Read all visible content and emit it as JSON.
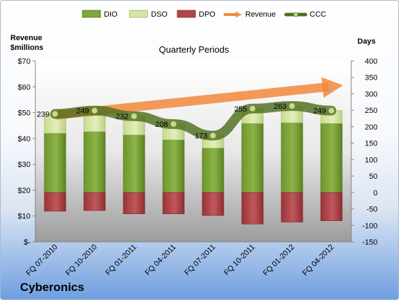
{
  "company": "Cyberonics",
  "left_axis_title_line1": "Revenue",
  "left_axis_title_line2": "$millions",
  "right_axis_title": "Days",
  "chart_title": "Quarterly Periods",
  "colors": {
    "dio": "#7fa83c",
    "dso": "#d7e6a7",
    "dpo": "#b0454a",
    "revenue": "#f08a3c",
    "ccc": "#4e6e1f"
  },
  "chart_data": {
    "type": "bar",
    "title": "Quarterly Periods",
    "categories": [
      "FQ 07-2010",
      "FQ 10-2010",
      "FQ 01-2011",
      "FQ 04-2011",
      "FQ 07-2011",
      "FQ 10-2011",
      "FQ 01-2012",
      "FQ 04-2012"
    ],
    "series": [
      {
        "name": "DIO",
        "values": [
          180,
          185,
          175,
          160,
          135,
          210,
          212,
          210
        ]
      },
      {
        "name": "DSO",
        "values": [
          58,
          63,
          57,
          48,
          38,
          45,
          50,
          39
        ]
      },
      {
        "name": "DPO",
        "values": [
          -57,
          -55,
          -65,
          -65,
          -70,
          -96,
          -90,
          -86
        ]
      },
      {
        "name": "Revenue",
        "values": [
          49,
          51,
          50,
          53,
          55,
          57,
          58,
          60
        ]
      },
      {
        "name": "CCC",
        "values": [
          239,
          249,
          232,
          208,
          173,
          255,
          263,
          249
        ]
      }
    ],
    "ccc_labels": [
      "239",
      "249",
      "232",
      "208",
      "173",
      "255",
      "263",
      "249"
    ],
    "left_axis": {
      "label": "Revenue $millions",
      "range": [
        0,
        70
      ],
      "ticks": [
        "$-",
        "$10",
        "$20",
        "$30",
        "$40",
        "$50",
        "$60",
        "$70"
      ]
    },
    "right_axis": {
      "label": "Days",
      "range": [
        -150,
        400
      ],
      "ticks": [
        "-150",
        "-100",
        "-50",
        "0",
        "50",
        "100",
        "150",
        "200",
        "250",
        "300",
        "350",
        "400"
      ]
    },
    "legend": {
      "position": "top",
      "entries": [
        "DIO",
        "DSO",
        "DPO",
        "Revenue",
        "CCC"
      ]
    },
    "grid": false
  }
}
